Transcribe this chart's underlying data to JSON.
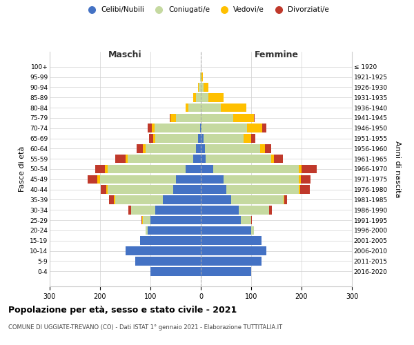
{
  "age_groups": [
    "0-4",
    "5-9",
    "10-14",
    "15-19",
    "20-24",
    "25-29",
    "30-34",
    "35-39",
    "40-44",
    "45-49",
    "50-54",
    "55-59",
    "60-64",
    "65-69",
    "70-74",
    "75-79",
    "80-84",
    "85-89",
    "90-94",
    "95-99",
    "100+"
  ],
  "birth_years": [
    "2016-2020",
    "2011-2015",
    "2006-2010",
    "2001-2005",
    "1996-2000",
    "1991-1995",
    "1986-1990",
    "1981-1985",
    "1976-1980",
    "1971-1975",
    "1966-1970",
    "1961-1965",
    "1956-1960",
    "1951-1955",
    "1946-1950",
    "1941-1945",
    "1936-1940",
    "1931-1935",
    "1926-1930",
    "1921-1925",
    "≤ 1920"
  ],
  "male_celibi": [
    100,
    130,
    150,
    120,
    105,
    100,
    90,
    75,
    55,
    50,
    30,
    15,
    10,
    5,
    2,
    0,
    0,
    0,
    0,
    0,
    0
  ],
  "male_coniugati": [
    0,
    0,
    0,
    0,
    5,
    15,
    48,
    95,
    130,
    150,
    155,
    130,
    100,
    85,
    90,
    50,
    25,
    10,
    4,
    1,
    0
  ],
  "male_vedovi": [
    0,
    0,
    0,
    0,
    0,
    1,
    1,
    2,
    3,
    5,
    5,
    5,
    5,
    5,
    5,
    10,
    5,
    5,
    2,
    0,
    0
  ],
  "male_divorziati": [
    0,
    0,
    0,
    0,
    0,
    2,
    5,
    10,
    10,
    20,
    20,
    20,
    12,
    8,
    8,
    2,
    0,
    0,
    0,
    0,
    0
  ],
  "female_nubili": [
    100,
    120,
    130,
    120,
    100,
    80,
    75,
    60,
    50,
    45,
    25,
    10,
    8,
    5,
    2,
    0,
    0,
    0,
    0,
    0,
    0
  ],
  "female_coniugate": [
    0,
    0,
    0,
    0,
    5,
    20,
    60,
    105,
    145,
    150,
    170,
    130,
    110,
    80,
    90,
    65,
    40,
    15,
    5,
    2,
    0
  ],
  "female_vedove": [
    0,
    0,
    0,
    0,
    0,
    0,
    1,
    1,
    2,
    3,
    5,
    5,
    10,
    15,
    30,
    40,
    50,
    30,
    10,
    2,
    0
  ],
  "female_divorziate": [
    0,
    0,
    0,
    0,
    0,
    2,
    5,
    5,
    20,
    20,
    30,
    18,
    12,
    8,
    8,
    2,
    0,
    0,
    0,
    0,
    0
  ],
  "color_celibi": "#4472c4",
  "color_coniugati": "#c5d9a0",
  "color_vedovi": "#ffc000",
  "color_divorziati": "#c0392b",
  "title": "Popolazione per età, sesso e stato civile - 2021",
  "subtitle": "COMUNE DI UGGIATE-TREVANO (CO) - Dati ISTAT 1° gennaio 2021 - Elaborazione TUTTITALIA.IT",
  "xlabel_left": "Maschi",
  "xlabel_right": "Femmine",
  "ylabel_left": "Fasce di età",
  "ylabel_right": "Anni di nascita",
  "xlim": 300,
  "background_color": "#ffffff",
  "grid_color": "#d0d0d0"
}
